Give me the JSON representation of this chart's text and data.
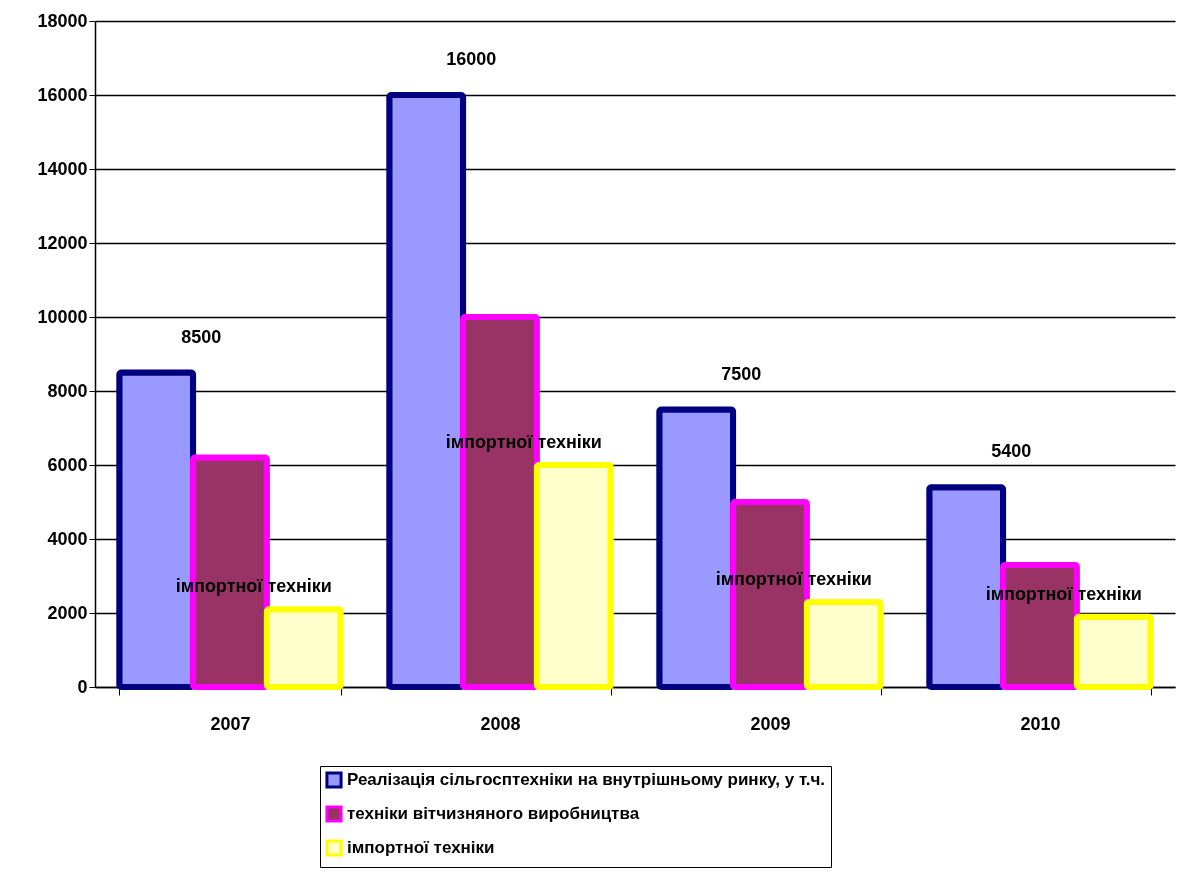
{
  "chart_data": {
    "type": "bar",
    "categories": [
      "2007",
      "2008",
      "2009",
      "2010"
    ],
    "series": [
      {
        "name": "Реалізація сільгосптехніки на внутрішньому ринку, у т.ч.",
        "color": "#9999ff",
        "values": [
          8500,
          16000,
          7500,
          5400
        ],
        "value_labels": [
          "8500",
          "16000",
          "7500",
          "5400"
        ]
      },
      {
        "name": "техніки вітчизняного виробництва",
        "color": "#993366",
        "values": [
          6200,
          10000,
          5000,
          3300
        ]
      },
      {
        "name": "імпортної техніки",
        "color": "#ffffcc",
        "values": [
          2100,
          6000,
          2300,
          1900
        ],
        "value_labels": [
          "імпортної техніки",
          "імпортної техніки",
          "імпортної техніки",
          "імпортної техніки"
        ]
      }
    ],
    "ylim": [
      0,
      18000
    ],
    "yticks": [
      0,
      2000,
      4000,
      6000,
      8000,
      10000,
      12000,
      14000,
      16000,
      18000
    ],
    "grid": "y",
    "legend": "bottom"
  }
}
